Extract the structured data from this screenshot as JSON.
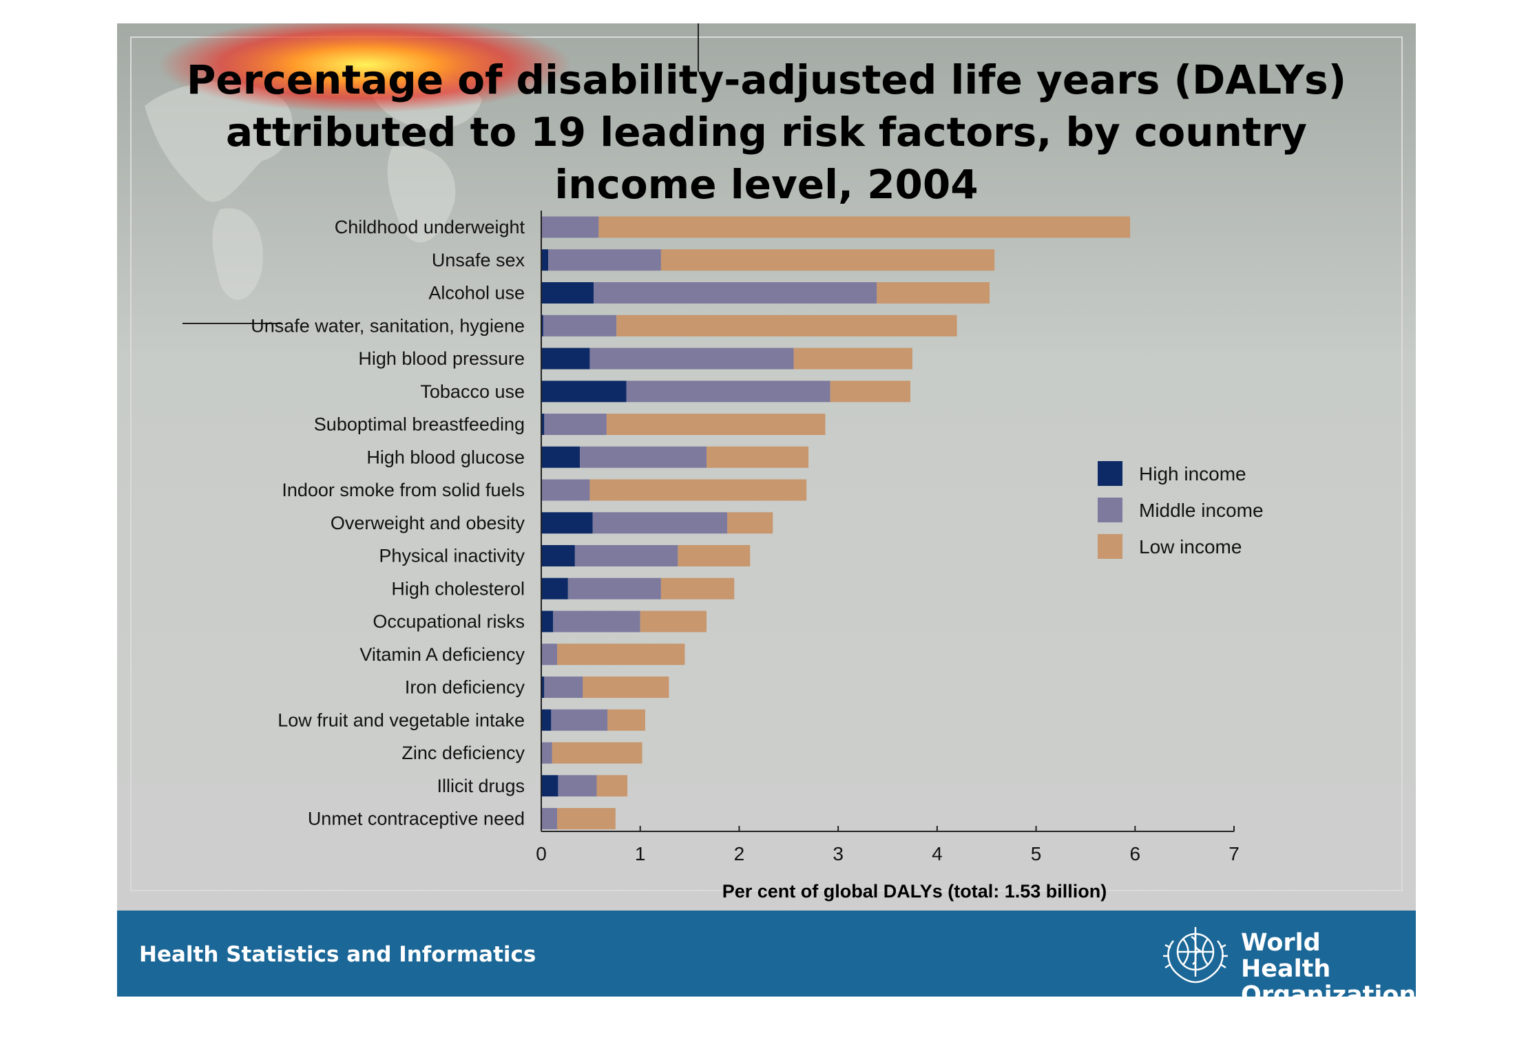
{
  "title_lines": [
    "Percentage of disability-adjusted life years (DALYs)",
    "attributed to 19 leading risk factors, by country",
    "income level, 2004"
  ],
  "footer": {
    "left_text": "Health Statistics and Informatics",
    "org_name_lines": [
      "World Health",
      "Organization"
    ]
  },
  "colors": {
    "high_income": "#0d2a66",
    "middle_income": "#7d7a9e",
    "low_income": "#c8976d",
    "footer_bg": "#1b6797"
  },
  "chart_data": {
    "type": "bar",
    "orientation": "horizontal",
    "stacked": true,
    "title": "Percentage of disability-adjusted life years (DALYs) attributed to 19 leading risk factors, by country income level, 2004",
    "xlabel": "Per cent of global DALYs (total: 1.53 billion)",
    "ylabel": "",
    "xlim": [
      0,
      7
    ],
    "xticks": [
      "0",
      "1",
      "2",
      "3",
      "4",
      "5",
      "6",
      "7"
    ],
    "grid": false,
    "legend_position": "right",
    "categories": [
      "Childhood underweight",
      "Unsafe sex",
      "Alcohol use",
      "Unsafe water, sanitation, hygiene",
      "High blood pressure",
      "Tobacco use",
      "Suboptimal breastfeeding",
      "High blood glucose",
      "Indoor smoke from solid fuels",
      "Overweight and obesity",
      "Physical inactivity",
      "High cholesterol",
      "Occupational risks",
      "Vitamin A deficiency",
      "Iron deficiency",
      "Low fruit and vegetable intake",
      "Zinc deficiency",
      "Illicit drugs",
      "Unmet contraceptive need"
    ],
    "series": [
      {
        "name": "High income",
        "values": [
          0.0,
          0.07,
          0.53,
          0.02,
          0.49,
          0.86,
          0.03,
          0.39,
          0.0,
          0.52,
          0.34,
          0.27,
          0.12,
          0.0,
          0.03,
          0.1,
          0.0,
          0.17,
          0.0
        ]
      },
      {
        "name": "Middle income",
        "values": [
          0.58,
          1.14,
          2.86,
          0.74,
          2.06,
          2.06,
          0.63,
          1.28,
          0.49,
          1.36,
          1.04,
          0.94,
          0.88,
          0.16,
          0.39,
          0.57,
          0.11,
          0.39,
          0.16
        ]
      },
      {
        "name": "Low income",
        "values": [
          5.37,
          3.37,
          1.14,
          3.44,
          1.2,
          0.81,
          2.21,
          1.03,
          2.19,
          0.46,
          0.73,
          0.74,
          0.67,
          1.29,
          0.87,
          0.38,
          0.91,
          0.31,
          0.59
        ]
      }
    ]
  }
}
